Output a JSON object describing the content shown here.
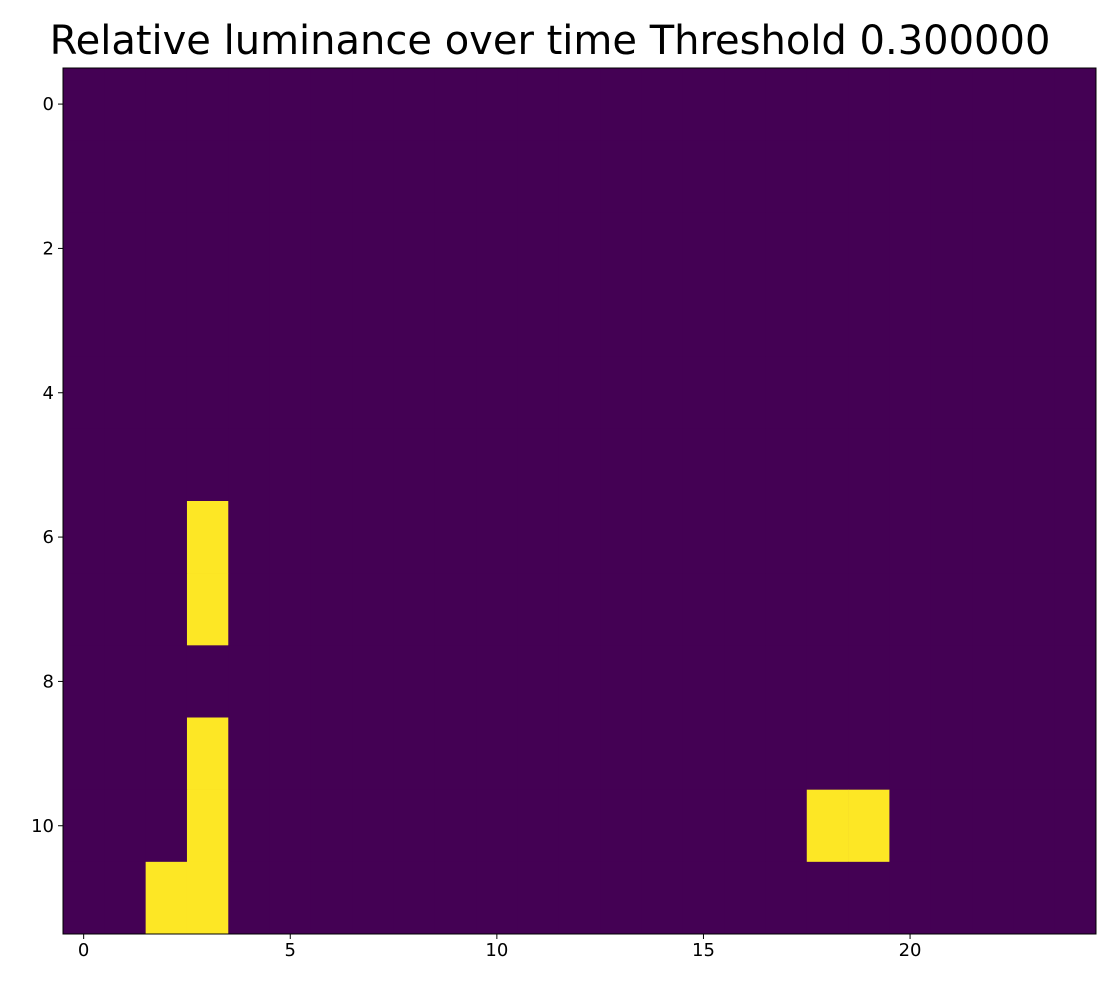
{
  "chart_data": {
    "type": "heatmap",
    "title": "Relative luminance over time Threshold 0.300000",
    "xlabel": "",
    "ylabel": "",
    "xlim": [
      -0.5,
      24.5
    ],
    "ylim": [
      11.5,
      -0.5
    ],
    "x_ticks": [
      0,
      5,
      10,
      15,
      20
    ],
    "y_ticks": [
      0,
      2,
      4,
      6,
      8,
      10
    ],
    "rows": 12,
    "cols": 25,
    "grid": false,
    "colors": {
      "low": "#440154",
      "high": "#fde725"
    },
    "values": [
      [
        0,
        0,
        0,
        0,
        0,
        0,
        0,
        0,
        0,
        0,
        0,
        0,
        0,
        0,
        0,
        0,
        0,
        0,
        0,
        0,
        0,
        0,
        0,
        0,
        0
      ],
      [
        0,
        0,
        0,
        0,
        0,
        0,
        0,
        0,
        0,
        0,
        0,
        0,
        0,
        0,
        0,
        0,
        0,
        0,
        0,
        0,
        0,
        0,
        0,
        0,
        0
      ],
      [
        0,
        0,
        0,
        0,
        0,
        0,
        0,
        0,
        0,
        0,
        0,
        0,
        0,
        0,
        0,
        0,
        0,
        0,
        0,
        0,
        0,
        0,
        0,
        0,
        0
      ],
      [
        0,
        0,
        0,
        0,
        0,
        0,
        0,
        0,
        0,
        0,
        0,
        0,
        0,
        0,
        0,
        0,
        0,
        0,
        0,
        0,
        0,
        0,
        0,
        0,
        0
      ],
      [
        0,
        0,
        0,
        0,
        0,
        0,
        0,
        0,
        0,
        0,
        0,
        0,
        0,
        0,
        0,
        0,
        0,
        0,
        0,
        0,
        0,
        0,
        0,
        0,
        0
      ],
      [
        0,
        0,
        0,
        0,
        0,
        0,
        0,
        0,
        0,
        0,
        0,
        0,
        0,
        0,
        0,
        0,
        0,
        0,
        0,
        0,
        0,
        0,
        0,
        0,
        0
      ],
      [
        0,
        0,
        0,
        1,
        0,
        0,
        0,
        0,
        0,
        0,
        0,
        0,
        0,
        0,
        0,
        0,
        0,
        0,
        0,
        0,
        0,
        0,
        0,
        0,
        0
      ],
      [
        0,
        0,
        0,
        1,
        0,
        0,
        0,
        0,
        0,
        0,
        0,
        0,
        0,
        0,
        0,
        0,
        0,
        0,
        0,
        0,
        0,
        0,
        0,
        0,
        0
      ],
      [
        0,
        0,
        0,
        0,
        0,
        0,
        0,
        0,
        0,
        0,
        0,
        0,
        0,
        0,
        0,
        0,
        0,
        0,
        0,
        0,
        0,
        0,
        0,
        0,
        0
      ],
      [
        0,
        0,
        0,
        1,
        0,
        0,
        0,
        0,
        0,
        0,
        0,
        0,
        0,
        0,
        0,
        0,
        0,
        0,
        0,
        0,
        0,
        0,
        0,
        0,
        0
      ],
      [
        0,
        0,
        0,
        1,
        0,
        0,
        0,
        0,
        0,
        0,
        0,
        0,
        0,
        0,
        0,
        0,
        0,
        0,
        1,
        1,
        0,
        0,
        0,
        0,
        0
      ],
      [
        0,
        0,
        1,
        1,
        0,
        0,
        0,
        0,
        0,
        0,
        0,
        0,
        0,
        0,
        0,
        0,
        0,
        0,
        0,
        0,
        0,
        0,
        0,
        0,
        0
      ]
    ]
  }
}
